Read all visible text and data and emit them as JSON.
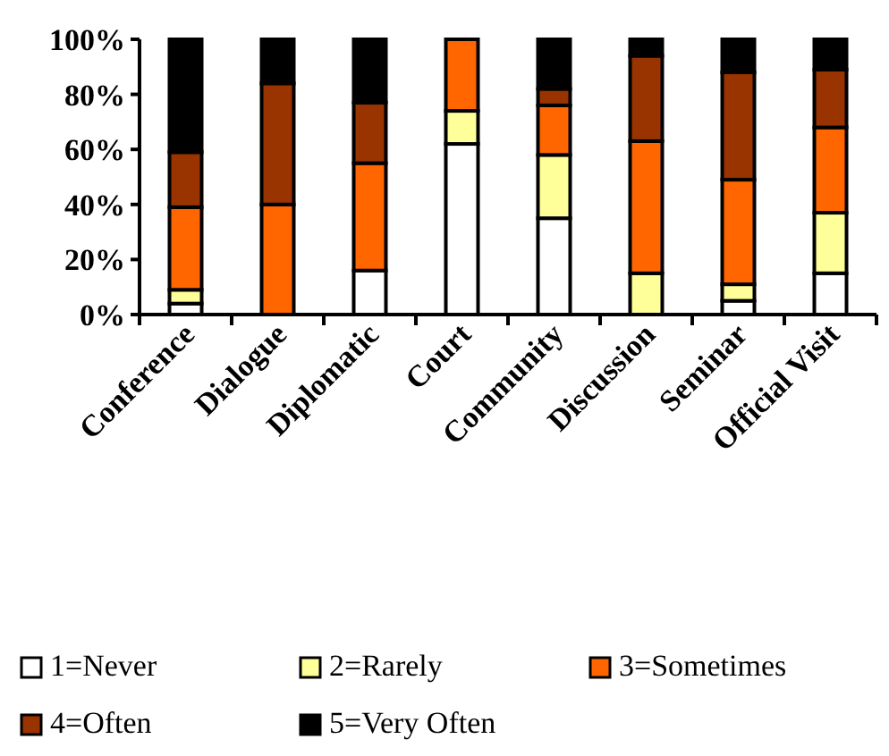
{
  "chart_data": {
    "type": "bar",
    "stacked": true,
    "categories": [
      "Conference",
      "Dialogue",
      "Diplomatic",
      "Court",
      "Community",
      "Discussion",
      "Seminar",
      "Official Visit"
    ],
    "series": [
      {
        "name": "1=Never",
        "color": "#ffffff",
        "values": [
          4,
          0,
          16,
          62,
          35,
          0,
          5,
          15
        ]
      },
      {
        "name": "2=Rarely",
        "color": "#ffff99",
        "values": [
          5,
          0,
          0,
          12,
          23,
          15,
          6,
          22
        ]
      },
      {
        "name": "3=Sometimes",
        "color": "#ff6600",
        "values": [
          30,
          40,
          39,
          26,
          18,
          48,
          38,
          31
        ]
      },
      {
        "name": "4=Often",
        "color": "#993300",
        "values": [
          20,
          44,
          22,
          0,
          6,
          31,
          39,
          21
        ]
      },
      {
        "name": "5=Very Often",
        "color": "#000000",
        "values": [
          41,
          16,
          23,
          0,
          18,
          6,
          12,
          11
        ]
      }
    ],
    "ylim": [
      0,
      100
    ],
    "yticks": [
      {
        "value": 0,
        "label": "0%"
      },
      {
        "value": 20,
        "label": "20%"
      },
      {
        "value": 40,
        "label": "40%"
      },
      {
        "value": 60,
        "label": "60%"
      },
      {
        "value": 80,
        "label": "80%"
      },
      {
        "value": 100,
        "label": "100%"
      }
    ],
    "legend": "bottom"
  }
}
